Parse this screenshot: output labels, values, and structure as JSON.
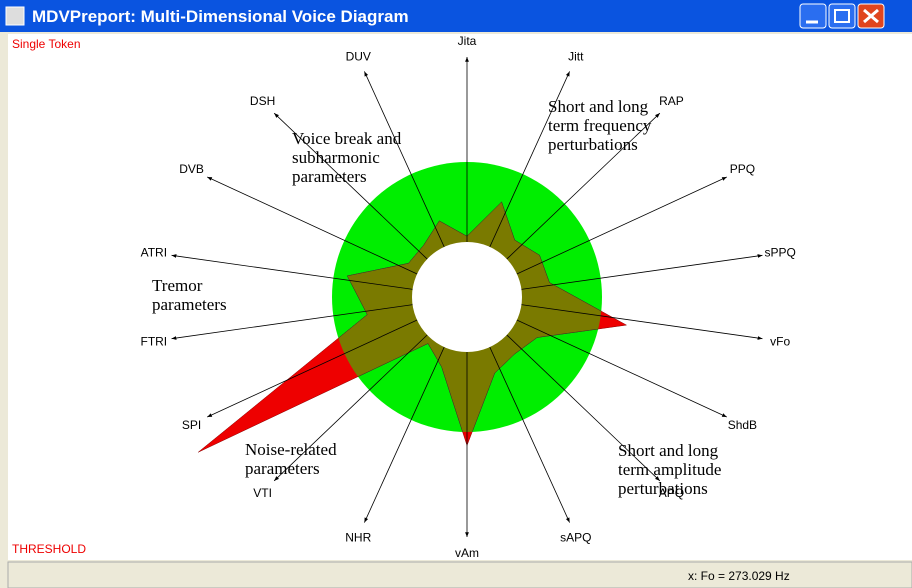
{
  "window": {
    "title": "MDVPreport: Multi-Dimensional Voice Diagram"
  },
  "labels": {
    "single_token": "Single Token",
    "threshold": "THRESHOLD"
  },
  "status": {
    "text": "x:  Fo = 273.029 Hz"
  },
  "annotations": [
    {
      "lines": [
        "Short and long",
        "term frequency",
        "perturbations"
      ]
    },
    {
      "lines": [
        "Voice break and",
        "subharmonic",
        "parameters"
      ]
    },
    {
      "lines": [
        "Tremor",
        "parameters"
      ]
    },
    {
      "lines": [
        "Noise-related",
        "parameters"
      ]
    },
    {
      "lines": [
        "Short and long",
        "term amplitude",
        "perturbations"
      ]
    }
  ],
  "diagram": {
    "parameters": [
      {
        "label": "Jita",
        "value": 0.45
      },
      {
        "label": "Jitt",
        "value": 0.75
      },
      {
        "label": "RAP",
        "value": 0.55
      },
      {
        "label": "PPQ",
        "value": 0.62
      },
      {
        "label": "sPPQ",
        "value": 0.62
      },
      {
        "label": "vFo",
        "value": 1.2
      },
      {
        "label": "ShdB",
        "value": 0.6
      },
      {
        "label": "APQ",
        "value": 0.55
      },
      {
        "label": "sAPQ",
        "value": 0.6
      },
      {
        "label": "vAm",
        "value": 1.1
      },
      {
        "label": "NHR",
        "value": 0.55
      },
      {
        "label": "VTI",
        "value": 0.45
      },
      {
        "label": "SPI",
        "value": 2.3
      },
      {
        "label": "FTRI",
        "value": 0.75
      },
      {
        "label": "ATRI",
        "value": 0.9
      },
      {
        "label": "DVB",
        "value": 0.5
      },
      {
        "label": "DSH",
        "value": 0.5
      },
      {
        "label": "DUV",
        "value": 0.6
      }
    ]
  }
}
